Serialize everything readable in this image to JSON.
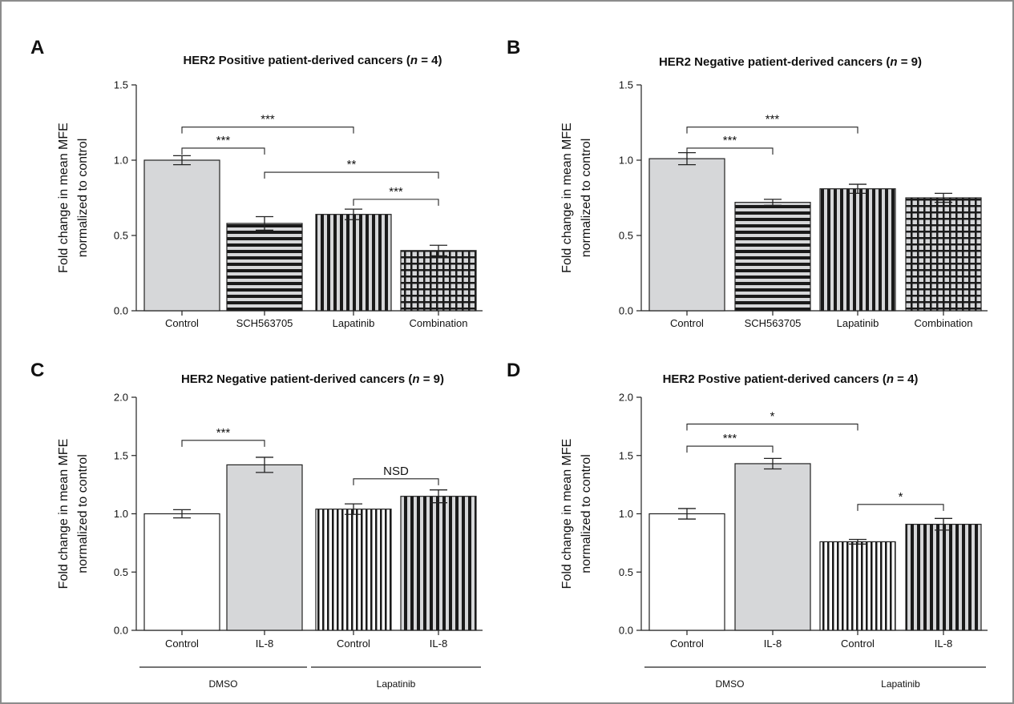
{
  "figure": {
    "accent_colors": {
      "gray_fill": "#d6d7d9",
      "white_fill": "#ffffff",
      "dark": "#1a1a1a"
    }
  },
  "chart_data": [
    {
      "panel": "A",
      "type": "bar",
      "title_parts": [
        {
          "text": "HER2 Positive patient-derived cancers (",
          "italic": false
        },
        {
          "text": "n",
          "italic": true
        },
        {
          "text": " = 4)",
          "italic": false
        }
      ],
      "ylabel_lines": [
        "Fold change in mean MFE",
        "normalized to control"
      ],
      "ylim": [
        0,
        1.5
      ],
      "yticks": [
        "0.0",
        "0.5",
        "1.0",
        "1.5"
      ],
      "categories": [
        "Control",
        "SCH563705",
        "Lapatinib",
        "Combination"
      ],
      "values": [
        1.0,
        0.58,
        0.64,
        0.4
      ],
      "errors": [
        0.03,
        0.045,
        0.035,
        0.035
      ],
      "patterns": [
        "solid-gray",
        "hstripe",
        "vstripe-gray",
        "grid"
      ],
      "groups": [],
      "significance": [
        {
          "from": 0,
          "to": 2,
          "label": "***",
          "y": 1.22
        },
        {
          "from": 0,
          "to": 1,
          "label": "***",
          "y": 1.08
        },
        {
          "from": 1,
          "to": 3,
          "label": "**",
          "y": 0.92
        },
        {
          "from": 2,
          "to": 3,
          "label": "***",
          "y": 0.74
        }
      ]
    },
    {
      "panel": "B",
      "type": "bar",
      "title_parts": [
        {
          "text": "HER2 Negative patient-derived cancers (",
          "italic": false
        },
        {
          "text": "n",
          "italic": true
        },
        {
          "text": " = 9)",
          "italic": false
        }
      ],
      "ylabel_lines": [
        "Fold change in mean MFE",
        "normalized to control"
      ],
      "ylim": [
        0,
        1.5
      ],
      "yticks": [
        "0.0",
        "0.5",
        "1.0",
        "1.5"
      ],
      "categories": [
        "Control",
        "SCH563705",
        "Lapatinib",
        "Combination"
      ],
      "values": [
        1.01,
        0.72,
        0.81,
        0.75
      ],
      "errors": [
        0.04,
        0.02,
        0.03,
        0.03
      ],
      "patterns": [
        "solid-gray",
        "hstripe",
        "vstripe-gray",
        "grid"
      ],
      "groups": [],
      "significance": [
        {
          "from": 0,
          "to": 2,
          "label": "***",
          "y": 1.22
        },
        {
          "from": 0,
          "to": 1,
          "label": "***",
          "y": 1.08
        }
      ]
    },
    {
      "panel": "C",
      "type": "bar",
      "title_parts": [
        {
          "text": "HER2 Negative patient-derived cancers (",
          "italic": false
        },
        {
          "text": "n",
          "italic": true
        },
        {
          "text": " = 9)",
          "italic": false
        }
      ],
      "ylabel_lines": [
        "Fold change in mean MFE",
        "normalized to control"
      ],
      "ylim": [
        0,
        2.0
      ],
      "yticks": [
        "0.0",
        "0.5",
        "1.0",
        "1.5",
        "2.0"
      ],
      "categories": [
        "Control",
        "IL-8",
        "Control",
        "IL-8"
      ],
      "values": [
        1.0,
        1.42,
        1.04,
        1.15
      ],
      "errors": [
        0.035,
        0.065,
        0.045,
        0.055
      ],
      "patterns": [
        "white",
        "solid-gray",
        "vstripe-white",
        "vstripe-gray"
      ],
      "groups": [
        {
          "label": "DMSO",
          "from": 0,
          "to": 1
        },
        {
          "label": "Lapatinib",
          "from": 2,
          "to": 3
        }
      ],
      "significance": [
        {
          "from": 0,
          "to": 1,
          "label": "***",
          "y": 1.63
        },
        {
          "from": 2,
          "to": 3,
          "label": "NSD",
          "y": 1.3
        }
      ]
    },
    {
      "panel": "D",
      "type": "bar",
      "title_parts": [
        {
          "text": "HER2 Postive patient-derived cancers (",
          "italic": false
        },
        {
          "text": "n",
          "italic": true
        },
        {
          "text": " = 4)",
          "italic": false
        }
      ],
      "ylabel_lines": [
        "Fold change in mean MFE",
        "normalized to control"
      ],
      "ylim": [
        0,
        2.0
      ],
      "yticks": [
        "0.0",
        "0.5",
        "1.0",
        "1.5",
        "2.0"
      ],
      "categories": [
        "Control",
        "IL-8",
        "Control",
        "IL-8"
      ],
      "values": [
        1.0,
        1.43,
        0.76,
        0.91
      ],
      "errors": [
        0.045,
        0.045,
        0.02,
        0.05
      ],
      "patterns": [
        "white",
        "solid-gray",
        "vstripe-white",
        "vstripe-gray"
      ],
      "groups": [
        {
          "label": "DMSO",
          "from": 0,
          "to": 1
        },
        {
          "label": "Lapatinib",
          "from": 2,
          "to": 3
        }
      ],
      "significance": [
        {
          "from": 0,
          "to": 2,
          "label": "*",
          "y": 1.77
        },
        {
          "from": 0,
          "to": 1,
          "label": "***",
          "y": 1.58
        },
        {
          "from": 2,
          "to": 3,
          "label": "*",
          "y": 1.08
        }
      ]
    }
  ]
}
